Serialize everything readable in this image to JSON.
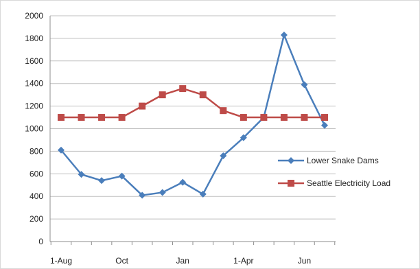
{
  "chart_data": {
    "type": "line",
    "title": "",
    "xlabel": "",
    "ylabel": "",
    "ylim": [
      0,
      2000
    ],
    "y_ticks": [
      0,
      200,
      400,
      600,
      800,
      1000,
      1200,
      1400,
      1600,
      1800,
      2000
    ],
    "categories": [
      "1-Aug",
      "",
      "",
      "Oct",
      "",
      "",
      "Jan",
      "",
      "",
      "1-Apr",
      "",
      "",
      "Jun",
      ""
    ],
    "x_tick_labels": [
      {
        "index": 0,
        "label": "1-Aug"
      },
      {
        "index": 3,
        "label": "Oct"
      },
      {
        "index": 6,
        "label": "Jan"
      },
      {
        "index": 9,
        "label": "1-Apr"
      },
      {
        "index": 12,
        "label": "Jun"
      }
    ],
    "grid": "horizontal",
    "legend_position": "right",
    "series": [
      {
        "name": "Lower Snake Dams",
        "color": "#4a7ebb",
        "marker": "diamond",
        "values": [
          810,
          595,
          540,
          580,
          410,
          435,
          525,
          420,
          760,
          920,
          1100,
          1830,
          1390,
          1030
        ]
      },
      {
        "name": "Seattle Electricity Load",
        "color": "#be4b48",
        "marker": "square",
        "values": [
          1100,
          1100,
          1100,
          1100,
          1200,
          1300,
          1355,
          1300,
          1160,
          1100,
          1100,
          1100,
          1100,
          1100
        ]
      }
    ]
  }
}
